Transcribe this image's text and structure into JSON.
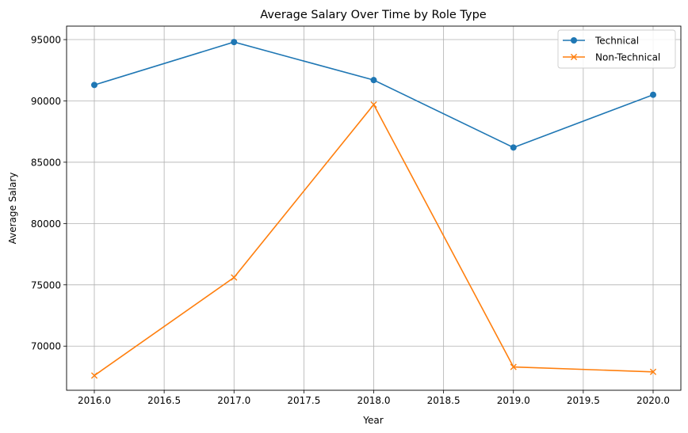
{
  "chart_data": {
    "type": "line",
    "title": "Average Salary Over Time by Role Type",
    "xlabel": "Year",
    "ylabel": "Average Salary",
    "xlim": [
      1983.8,
      2020.2
    ],
    "ylim": [
      66400,
      96100
    ],
    "x_ticks": [
      2016.0,
      2016.5,
      2017.0,
      2017.5,
      2018.0,
      2018.5,
      2019.0,
      2019.5,
      2020.0
    ],
    "x_tick_labels": [
      "2016.0",
      "2016.5",
      "2017.0",
      "2017.5",
      "2018.0",
      "2018.5",
      "2019.0",
      "2019.5",
      "2020.0"
    ],
    "y_ticks": [
      70000,
      75000,
      80000,
      85000,
      90000,
      95000
    ],
    "y_tick_labels": [
      "70000",
      "75000",
      "80000",
      "85000",
      "90000",
      "95000"
    ],
    "grid": true,
    "legend_position": "top-right",
    "x": [
      2016,
      2017,
      2018,
      2019,
      2020
    ],
    "series": [
      {
        "name": "Technical",
        "values": [
          91300,
          94800,
          91700,
          86200,
          90500
        ],
        "color": "#1f77b4",
        "marker": "circle"
      },
      {
        "name": "Non-Technical",
        "values": [
          67600,
          75600,
          89700,
          68300,
          67900
        ],
        "color": "#ff7f0e",
        "marker": "x"
      }
    ]
  }
}
